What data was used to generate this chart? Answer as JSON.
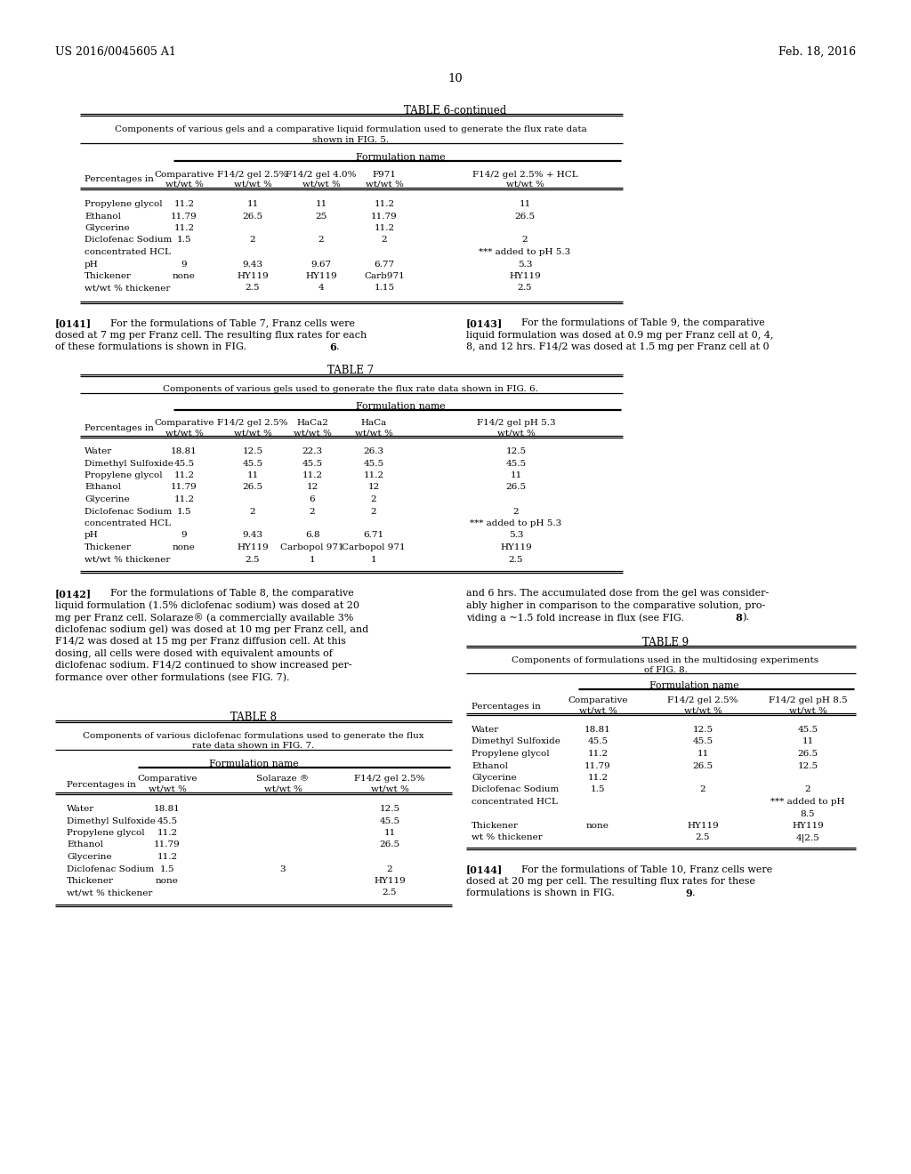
{
  "bg": "#ffffff",
  "header_left": "US 2016/0045605 A1",
  "header_right": "Feb. 18, 2016",
  "page_num": "10"
}
